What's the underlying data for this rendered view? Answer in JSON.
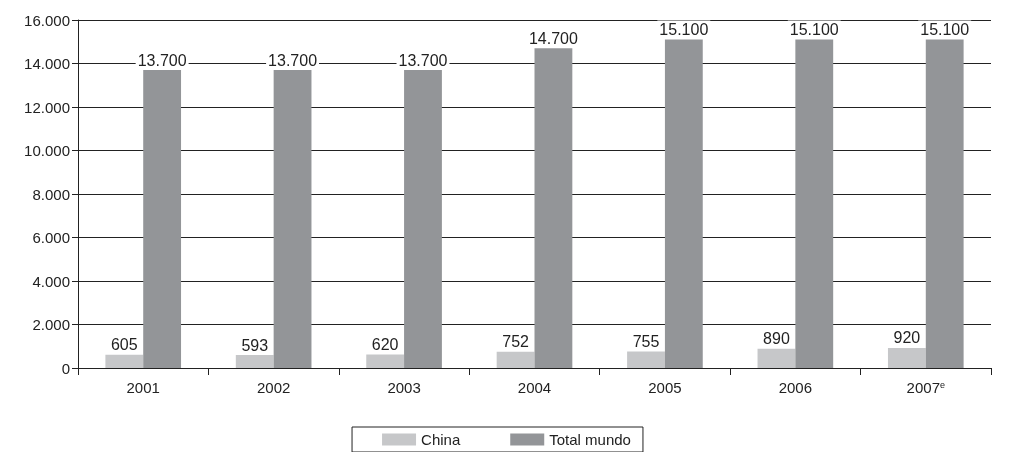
{
  "chart_data": {
    "type": "bar",
    "categories": [
      "2001",
      "2002",
      "2003",
      "2004",
      "2005",
      "2006",
      "2007$^{e}$"
    ],
    "series": [
      {
        "name": "China",
        "color": "#c6c7c9",
        "values": [
          605,
          593,
          620,
          752,
          755,
          890,
          920
        ],
        "value_labels": [
          "605",
          "593",
          "620",
          "752",
          "755",
          "890",
          "920"
        ]
      },
      {
        "name": "Total mundo",
        "color": "#939598",
        "values": [
          13700,
          13700,
          13700,
          14700,
          15100,
          15100,
          15100
        ],
        "value_labels": [
          "13.700",
          "13.700",
          "13.700",
          "14.700",
          "15.100",
          "15.100",
          "15.100"
        ]
      }
    ],
    "ylim": [
      0,
      16000
    ],
    "yticks": [
      {
        "value": 0,
        "label": "0"
      },
      {
        "value": 2000,
        "label": "2.000"
      },
      {
        "value": 4000,
        "label": "4.000"
      },
      {
        "value": 6000,
        "label": "6.000"
      },
      {
        "value": 8000,
        "label": "8.000"
      },
      {
        "value": 10000,
        "label": "10.000"
      },
      {
        "value": 12000,
        "label": "12.000"
      },
      {
        "value": 14000,
        "label": "14.000"
      },
      {
        "value": 16000,
        "label": "16.000"
      }
    ],
    "grid": "y",
    "legend": "bottom"
  }
}
